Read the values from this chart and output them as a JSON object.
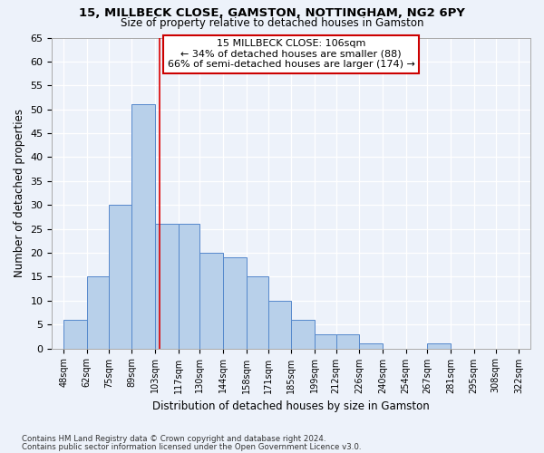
{
  "title1": "15, MILLBECK CLOSE, GAMSTON, NOTTINGHAM, NG2 6PY",
  "title2": "Size of property relative to detached houses in Gamston",
  "xlabel": "Distribution of detached houses by size in Gamston",
  "ylabel": "Number of detached properties",
  "bar_values": [
    6,
    15,
    30,
    51,
    26,
    26,
    20,
    19,
    15,
    10,
    6,
    3,
    3,
    1,
    0,
    0,
    1
  ],
  "bar_labels": [
    "48sqm",
    "62sqm",
    "75sqm",
    "89sqm",
    "103sqm",
    "117sqm",
    "130sqm",
    "144sqm",
    "158sqm",
    "171sqm",
    "185sqm",
    "199sqm",
    "212sqm",
    "226sqm",
    "240sqm",
    "254sqm",
    "267sqm",
    "281sqm",
    "295sqm",
    "308sqm",
    "322sqm"
  ],
  "bar_color": "#b8d0ea",
  "bar_edge_color": "#5588cc",
  "ylim": [
    0,
    65
  ],
  "yticks": [
    0,
    5,
    10,
    15,
    20,
    25,
    30,
    35,
    40,
    45,
    50,
    55,
    60,
    65
  ],
  "red_line_color": "#dd0000",
  "annotation_text_line1": "15 MILLBECK CLOSE: 106sqm",
  "annotation_text_line2": "← 34% of detached houses are smaller (88)",
  "annotation_text_line3": "66% of semi-detached houses are larger (174) →",
  "annotation_box_color": "#ffffff",
  "annotation_box_edge": "#cc0000",
  "footer1": "Contains HM Land Registry data © Crown copyright and database right 2024.",
  "footer2": "Contains public sector information licensed under the Open Government Licence v3.0.",
  "background_color": "#edf2fa",
  "grid_color": "#ffffff",
  "tick_positions": [
    48,
    62,
    75,
    89,
    103,
    117,
    130,
    144,
    158,
    171,
    185,
    199,
    212,
    226,
    240,
    254,
    267,
    281,
    295,
    308,
    322
  ]
}
